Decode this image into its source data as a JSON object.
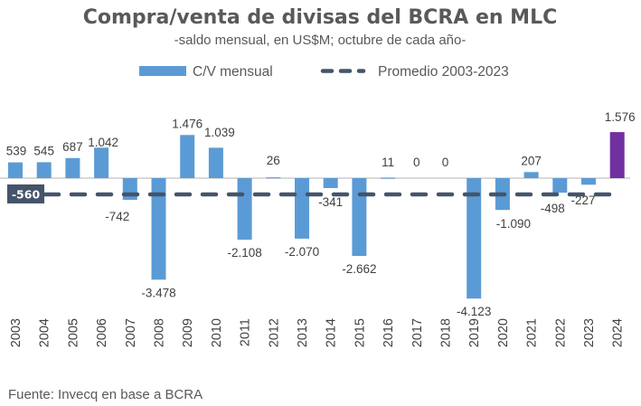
{
  "chart_data": {
    "type": "bar",
    "title": "Compra/venta de divisas del BCRA en MLC",
    "subtitle": "-saldo mensual, en US$M; octubre de cada año-",
    "xlabel": "",
    "ylabel": "",
    "categories": [
      "2003",
      "2004",
      "2005",
      "2006",
      "2007",
      "2008",
      "2009",
      "2010",
      "2011",
      "2012",
      "2013",
      "2014",
      "2015",
      "2016",
      "2017",
      "2018",
      "2019",
      "2020",
      "2021",
      "2022",
      "2023",
      "2024"
    ],
    "series": [
      {
        "name": "C/V mensual",
        "values": [
          539,
          545,
          687,
          1042,
          -742,
          -3478,
          1476,
          1039,
          -2108,
          26,
          -2070,
          -341,
          -2662,
          11,
          0,
          0,
          -4123,
          -1090,
          207,
          -498,
          -227,
          1576
        ],
        "labels": [
          "539",
          "545",
          "687",
          "1.042",
          "-742",
          "-3.478",
          "1.476",
          "1.039",
          "-2.108",
          "26",
          "-2.070",
          "-341",
          "-2.662",
          "11",
          "0",
          "0",
          "-4.123",
          "-1.090",
          "207",
          "-498",
          "-227",
          "1.576"
        ],
        "color": "#5b9bd5",
        "highlight": {
          "category": "2024",
          "color": "#7030a0"
        }
      },
      {
        "name": "Promedio 2003-2023",
        "value": -560,
        "label": "-560",
        "style": "dashed",
        "color": "#44546a"
      }
    ],
    "legend": {
      "position": "top-center",
      "entries": [
        "C/V mensual",
        "Promedio 2003-2023"
      ]
    },
    "ylim": [
      -4400,
      2000
    ],
    "grid": false,
    "source": "Fuente: Invecq en base a BCRA"
  }
}
